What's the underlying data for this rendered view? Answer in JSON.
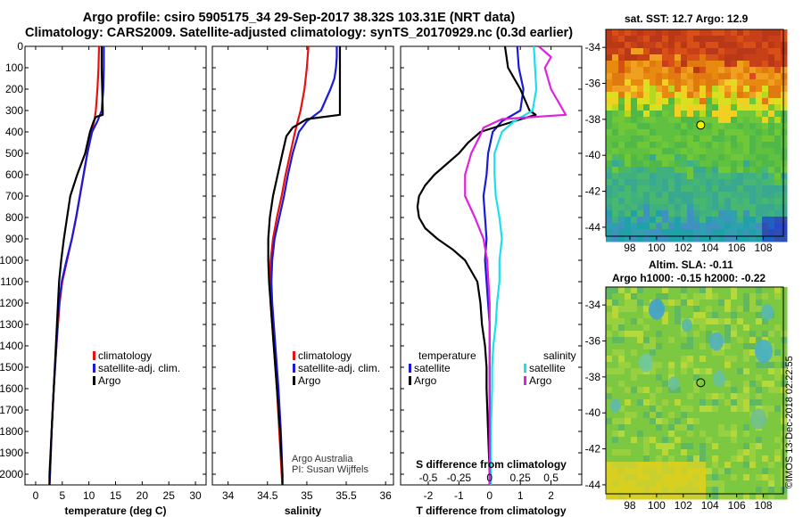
{
  "header": {
    "line1": "Argo profile: csiro 5905175_34 29-Sep-2017 38.32S 103.31E (NRT data)",
    "line2": "Climatology: CARS2009. Satellite-adjusted climatology: synTS_20170929.nc (0.3d earlier)"
  },
  "colors": {
    "climatology": "#e81010",
    "satellite": "#1a1ad8",
    "argo": "#000000",
    "satellite_salinity": "#18e0f0",
    "argo_salinity": "#e020e0"
  },
  "depth_axis": {
    "ticks": [
      0,
      100,
      200,
      300,
      400,
      500,
      600,
      700,
      800,
      900,
      1000,
      1100,
      1200,
      1300,
      1400,
      1500,
      1600,
      1700,
      1800,
      1900,
      2000
    ]
  },
  "chart_data": [
    {
      "type": "line",
      "id": "temperature",
      "xlabel": "temperature (deg C)",
      "xlim": [
        -2,
        32
      ],
      "ylim": [
        0,
        2050
      ],
      "xticks": [
        0,
        5,
        10,
        15,
        20,
        25,
        30
      ],
      "legend": [
        "climatology",
        "satellite-adj. clim.",
        "Argo"
      ],
      "series": [
        {
          "name": "climatology",
          "depth": [
            0,
            100,
            200,
            300,
            350,
            400,
            500,
            600,
            700,
            800,
            900,
            1000,
            1100,
            1200,
            1300,
            1400,
            1600,
            1800,
            2000,
            2050
          ],
          "values": [
            11.9,
            11.8,
            11.6,
            11.3,
            11.0,
            10.5,
            9.7,
            9.0,
            8.3,
            7.6,
            6.8,
            5.9,
            5.0,
            4.5,
            4.2,
            3.9,
            3.4,
            3.0,
            2.7,
            2.6
          ]
        },
        {
          "name": "satellite-adj. clim.",
          "depth": [
            0,
            100,
            200,
            300,
            350,
            400,
            500,
            600,
            700,
            800,
            900,
            1000,
            1100,
            1200,
            1300,
            1400,
            1600,
            1800,
            2000,
            2050
          ],
          "values": [
            12.8,
            12.8,
            12.7,
            12.4,
            11.6,
            10.6,
            9.7,
            9.0,
            8.3,
            7.6,
            6.8,
            5.8,
            4.9,
            4.4,
            4.1,
            3.9,
            3.4,
            3.0,
            2.7,
            2.6
          ]
        },
        {
          "name": "Argo",
          "depth": [
            0,
            100,
            200,
            300,
            320,
            330,
            350,
            400,
            500,
            600,
            700,
            800,
            900,
            1000,
            1100,
            1200,
            1300,
            1400,
            1600,
            1800,
            2000,
            2050
          ],
          "values": [
            12.4,
            12.4,
            12.5,
            12.6,
            12.6,
            11.3,
            10.9,
            10.2,
            9.3,
            7.8,
            6.5,
            5.9,
            5.3,
            4.8,
            4.4,
            4.2,
            4.0,
            3.8,
            3.4,
            3.0,
            2.6,
            2.6
          ]
        }
      ]
    },
    {
      "type": "line",
      "id": "salinity",
      "xlabel": "salinity",
      "xlim": [
        33.8,
        36.1
      ],
      "ylim": [
        0,
        2050
      ],
      "xticks": [
        34,
        34.5,
        35,
        35.5,
        36
      ],
      "xticklabels": [
        "34",
        "34.5",
        "35",
        "35.5",
        "36"
      ],
      "legend": [
        "climatology",
        "satellite-adj. clim.",
        "Argo"
      ],
      "note_lines": [
        "Argo Australia",
        "PI: Susan Wijffels"
      ],
      "series": [
        {
          "name": "climatology",
          "depth": [
            0,
            100,
            200,
            300,
            400,
            500,
            600,
            700,
            800,
            900,
            1000,
            1100,
            1200,
            1300,
            1400,
            1500,
            1600,
            1800,
            2000,
            2050
          ],
          "values": [
            35.02,
            35.0,
            34.97,
            34.92,
            34.85,
            34.79,
            34.73,
            34.68,
            34.62,
            34.57,
            34.54,
            34.53,
            34.54,
            34.56,
            34.58,
            34.6,
            34.62,
            34.65,
            34.68,
            34.69
          ]
        },
        {
          "name": "satellite-adj. clim.",
          "depth": [
            0,
            50,
            100,
            150,
            200,
            300,
            350,
            400,
            500,
            600,
            700,
            800,
            900,
            1000,
            1100,
            1200,
            1300,
            1400,
            1500,
            1600,
            1800,
            2000,
            2050
          ],
          "values": [
            35.38,
            35.38,
            35.37,
            35.35,
            35.3,
            35.18,
            35.0,
            34.9,
            34.82,
            34.76,
            34.71,
            34.65,
            34.59,
            34.56,
            34.55,
            34.56,
            34.58,
            34.6,
            34.62,
            34.64,
            34.67,
            34.69,
            34.69
          ]
        },
        {
          "name": "Argo",
          "depth": [
            0,
            100,
            200,
            300,
            320,
            340,
            380,
            420,
            500,
            600,
            700,
            800,
            900,
            1000,
            1100,
            1200,
            1300,
            1400,
            1500,
            1600,
            1800,
            2000,
            2050
          ],
          "values": [
            35.42,
            35.42,
            35.42,
            35.42,
            35.42,
            35.0,
            34.82,
            34.74,
            34.69,
            34.63,
            34.57,
            34.53,
            34.51,
            34.51,
            34.52,
            34.54,
            34.56,
            34.58,
            34.6,
            34.62,
            34.66,
            34.69,
            34.69
          ]
        }
      ]
    },
    {
      "type": "line",
      "id": "difference",
      "xlabel": "T difference from climatology",
      "xlabel_top": "S difference from climatology",
      "xlim": [
        -2.9,
        3.0
      ],
      "ylim": [
        0,
        2050
      ],
      "xticks": [
        -2,
        -1,
        0,
        1,
        2
      ],
      "xticklabels": [
        "-2",
        "-1",
        "0",
        "1",
        "2"
      ],
      "salinity_ticklabels": [
        "-0.5",
        "-0.25",
        "0",
        "0.25",
        "0.5"
      ],
      "legend_temperature": {
        "title": "temperature",
        "items": [
          "satellite",
          "Argo"
        ]
      },
      "legend_salinity": {
        "title": "salinity",
        "items": [
          "satellite",
          "Argo"
        ]
      },
      "series": [
        {
          "name": "temperature satellite",
          "depth": [
            0,
            100,
            200,
            300,
            350,
            400,
            500,
            600,
            700,
            800,
            900,
            1000,
            1100,
            1200,
            1300,
            1400,
            1600,
            1800,
            2000,
            2050
          ],
          "values": [
            0.9,
            0.95,
            1.1,
            1.0,
            0.4,
            0.1,
            -0.05,
            -0.1,
            -0.2,
            -0.15,
            -0.1,
            -0.15,
            -0.1,
            -0.05,
            0.0,
            0.0,
            0.0,
            0.0,
            0.0,
            0.0
          ]
        },
        {
          "name": "temperature Argo",
          "depth": [
            0,
            100,
            200,
            300,
            320,
            350,
            400,
            450,
            500,
            550,
            600,
            650,
            700,
            750,
            800,
            850,
            900,
            950,
            1000,
            1100,
            1200,
            1300,
            1400,
            1500,
            1600,
            1800,
            2000,
            2050
          ],
          "values": [
            0.5,
            0.6,
            1.0,
            1.3,
            1.5,
            0.8,
            -0.3,
            -0.7,
            -1.0,
            -1.4,
            -1.8,
            -2.1,
            -2.3,
            -2.35,
            -2.3,
            -2.1,
            -1.7,
            -1.2,
            -0.8,
            -0.4,
            -0.3,
            -0.25,
            -0.15,
            -0.1,
            -0.1,
            -0.05,
            0.0,
            0.0
          ]
        },
        {
          "name": "salinity satellite",
          "depth": [
            0,
            100,
            200,
            300,
            350,
            400,
            500,
            600,
            700,
            800,
            900,
            1000,
            1100,
            1200,
            1300,
            1400,
            1500,
            1600,
            1800,
            2000,
            2050
          ],
          "values": [
            0.36,
            0.37,
            0.38,
            0.35,
            0.2,
            0.1,
            0.04,
            0.04,
            0.05,
            0.08,
            0.1,
            0.08,
            0.08,
            0.06,
            0.05,
            0.03,
            0.02,
            0.02,
            0.01,
            0.01,
            0.01
          ]
        },
        {
          "name": "salinity Argo",
          "depth": [
            0,
            50,
            100,
            200,
            250,
            300,
            320,
            340,
            380,
            420,
            500,
            600,
            700,
            800,
            900,
            1000,
            1100,
            1200,
            1300,
            1400,
            1500,
            1600,
            1800,
            2000,
            2050
          ],
          "values": [
            0.4,
            0.5,
            0.45,
            0.5,
            0.55,
            0.6,
            0.62,
            0.1,
            -0.05,
            -0.08,
            -0.15,
            -0.2,
            -0.2,
            -0.12,
            -0.05,
            -0.02,
            -0.01,
            0.0,
            0.0,
            0.0,
            0.0,
            0.0,
            0.0,
            0.0,
            0.0
          ]
        }
      ]
    }
  ],
  "maps": [
    {
      "id": "sst_map",
      "title": "sat. SST: 12.7 Argo: 12.9",
      "lat_ticks": [
        "-34",
        "-36",
        "-38",
        "-40",
        "-42",
        "-44"
      ],
      "lon_ticks": [
        "98",
        "100",
        "102",
        "104",
        "106",
        "108"
      ],
      "marker": {
        "lon": 103.31,
        "lat": -38.32
      }
    },
    {
      "id": "sla_map",
      "title_line1": "Altim. SLA: -0.11",
      "title_line2": "Argo h1000: -0.15 h2000: -0.22",
      "lat_ticks": [
        "-34",
        "-36",
        "-38",
        "-40",
        "-42",
        "-44"
      ],
      "lon_ticks": [
        "98",
        "100",
        "102",
        "104",
        "106",
        "108"
      ],
      "marker": {
        "lon": 103.31,
        "lat": -38.32
      }
    }
  ],
  "watermark": "©IMOS 13-Dec-2018 02:22:55"
}
